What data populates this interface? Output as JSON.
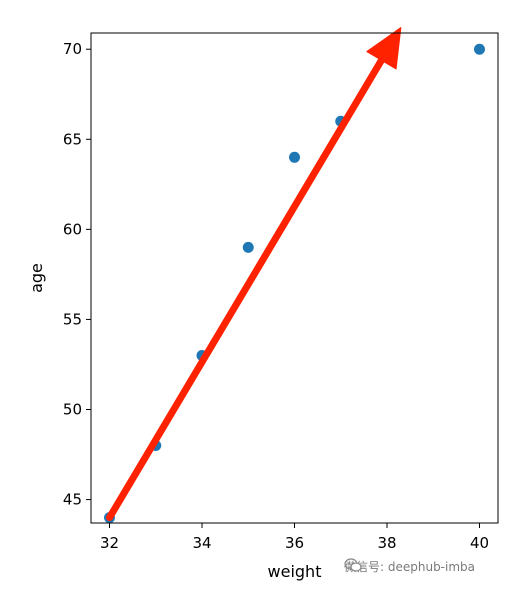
{
  "chart_data": {
    "type": "scatter",
    "title": "",
    "xlabel": "weight",
    "ylabel": "age",
    "xlim": [
      31.6,
      40.4
    ],
    "ylim": [
      43.7,
      70.9
    ],
    "xticks": [
      32,
      34,
      36,
      38,
      40
    ],
    "yticks": [
      45,
      50,
      55,
      60,
      65,
      70
    ],
    "grid": false,
    "series": [
      {
        "color": "#1f77b4",
        "points": [
          {
            "x": 32,
            "y": 44
          },
          {
            "x": 33,
            "y": 48
          },
          {
            "x": 34,
            "y": 53
          },
          {
            "x": 35,
            "y": 59
          },
          {
            "x": 36,
            "y": 64
          },
          {
            "x": 37,
            "y": 66
          },
          {
            "x": 40,
            "y": 70
          }
        ]
      }
    ],
    "annotation": {
      "type": "arrow",
      "color": "#ff2200",
      "from": {
        "x": 32,
        "y": 44
      },
      "to": {
        "x": 38.3,
        "y": 71.2
      }
    }
  },
  "watermark": {
    "text": "微信号: deephub-imba",
    "icon": "wechat-icon"
  }
}
